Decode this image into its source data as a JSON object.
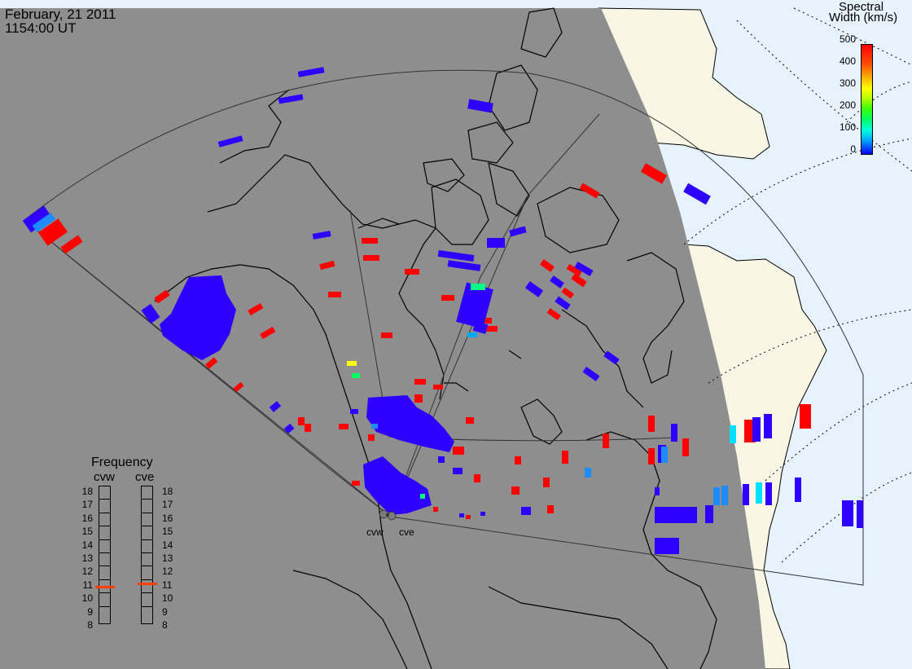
{
  "header": {
    "date": "February, 21 2011",
    "time": "1154:00 UT"
  },
  "colorbar": {
    "title_line1": "Spectral",
    "title_line2": "Width (km/s)",
    "ticks": [
      "500",
      "400",
      "300",
      "200",
      "100",
      "0"
    ],
    "range": [
      0,
      500
    ]
  },
  "frequency_panel": {
    "title": "Frequency",
    "radars": [
      {
        "name": "cvw",
        "selected_mhz": 10.7
      },
      {
        "name": "cve",
        "selected_mhz": 10.9
      }
    ],
    "ticks": [
      "18",
      "17",
      "16",
      "15",
      "14",
      "13",
      "12",
      "11",
      "10",
      "9",
      "8"
    ]
  },
  "sites": [
    {
      "name": "cvw"
    },
    {
      "name": "cve"
    }
  ],
  "colors": {
    "night": "#8e8e8e",
    "land_day": "#faf6e6",
    "sea_day": "#e6f2fc",
    "red": "#ff0000",
    "blue": "#2d00ff"
  }
}
